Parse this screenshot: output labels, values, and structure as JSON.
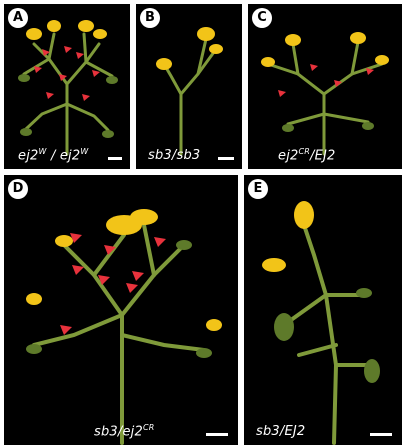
{
  "panels": {
    "A": {
      "letter": "A",
      "genotype": "ej2",
      "sup1": "W",
      "sep": " / ",
      "genotype2": "ej2",
      "sup2": "W"
    },
    "B": {
      "letter": "B",
      "genotype": "sb3/sb3"
    },
    "C": {
      "letter": "C",
      "genotype": "ej2",
      "sup1": "CR",
      "genotype2": "/EJ2"
    },
    "D": {
      "letter": "D",
      "genotype": "sb3/ej2",
      "sup1": "CR"
    },
    "E": {
      "letter": "E",
      "genotype": "sb3/EJ2"
    }
  },
  "colors": {
    "background": "#000000",
    "stem": "#7f9a3a",
    "flower": "#f2c418",
    "arrow": "#e8323c",
    "label": "#ffffff"
  }
}
